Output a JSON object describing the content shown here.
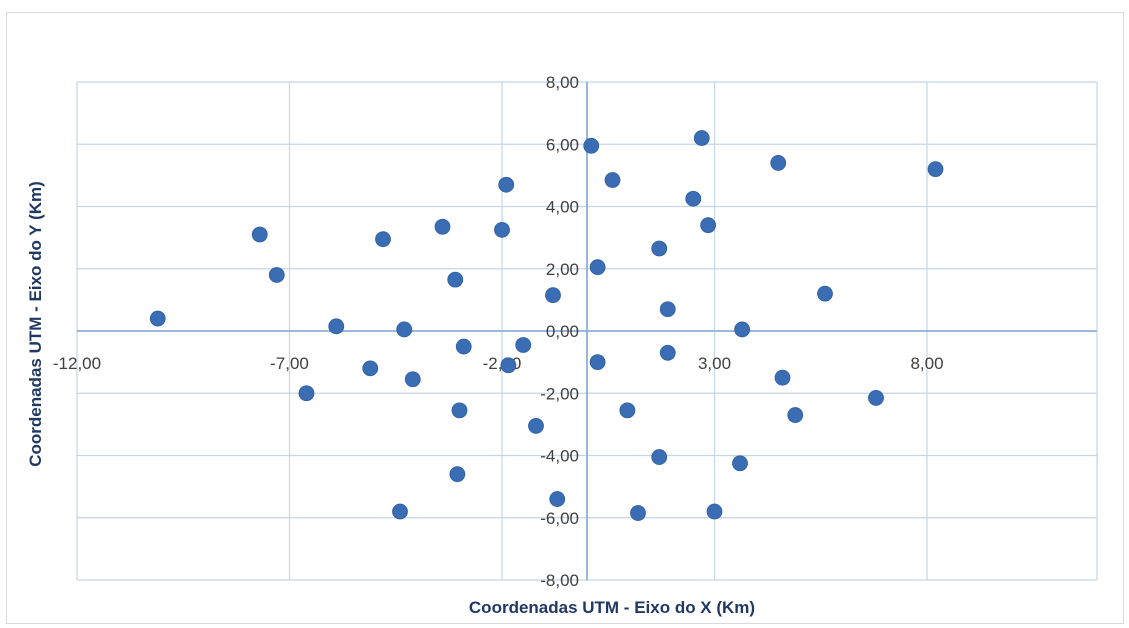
{
  "chart_data": {
    "type": "scatter",
    "xlabel": "Coordenadas UTM - Eixo do X (Km)",
    "ylabel": "Coordenadas UTM - Eixo do Y (Km)",
    "xlim": [
      -12,
      12
    ],
    "ylim": [
      -8,
      8
    ],
    "x_ticks": [
      {
        "value": -12,
        "label": "-12,00"
      },
      {
        "value": -7,
        "label": "-7,00"
      },
      {
        "value": -2,
        "label": "-2,00"
      },
      {
        "value": 3,
        "label": "3,00"
      },
      {
        "value": 8,
        "label": "8,00"
      }
    ],
    "y_ticks": [
      {
        "value": 8,
        "label": "8,00"
      },
      {
        "value": 6,
        "label": "6,00"
      },
      {
        "value": 4,
        "label": "4,00"
      },
      {
        "value": 2,
        "label": "2,00"
      },
      {
        "value": 0,
        "label": "0,00"
      },
      {
        "value": -2,
        "label": "-2,00"
      },
      {
        "value": -4,
        "label": "-4,00"
      },
      {
        "value": -6,
        "label": "-6,00"
      },
      {
        "value": -8,
        "label": "-8,00"
      }
    ],
    "grid": true,
    "marker_color": "#3a6db4",
    "points": [
      {
        "x": -10.1,
        "y": 0.4
      },
      {
        "x": -7.7,
        "y": 3.1
      },
      {
        "x": -7.3,
        "y": 1.8
      },
      {
        "x": -6.6,
        "y": -2.0
      },
      {
        "x": -5.9,
        "y": 0.15
      },
      {
        "x": -5.1,
        "y": -1.2
      },
      {
        "x": -4.8,
        "y": 2.95
      },
      {
        "x": -4.4,
        "y": -5.8
      },
      {
        "x": -4.3,
        "y": 0.05
      },
      {
        "x": -4.1,
        "y": -1.55
      },
      {
        "x": -3.4,
        "y": 3.35
      },
      {
        "x": -3.1,
        "y": 1.65
      },
      {
        "x": -3.05,
        "y": -4.6
      },
      {
        "x": -3.0,
        "y": -2.55
      },
      {
        "x": -2.9,
        "y": -0.5
      },
      {
        "x": -2.0,
        "y": 3.25
      },
      {
        "x": -1.9,
        "y": 4.7
      },
      {
        "x": -1.85,
        "y": -1.1
      },
      {
        "x": -1.5,
        "y": -0.45
      },
      {
        "x": -1.2,
        "y": -3.05
      },
      {
        "x": -0.8,
        "y": 1.15
      },
      {
        "x": -0.7,
        "y": -5.4
      },
      {
        "x": 0.1,
        "y": 5.95
      },
      {
        "x": 0.25,
        "y": 2.05
      },
      {
        "x": 0.25,
        "y": -1.0
      },
      {
        "x": 0.6,
        "y": 4.85
      },
      {
        "x": 0.95,
        "y": -2.55
      },
      {
        "x": 1.2,
        "y": -5.85
      },
      {
        "x": 1.7,
        "y": 2.65
      },
      {
        "x": 1.7,
        "y": -4.05
      },
      {
        "x": 1.9,
        "y": 0.7
      },
      {
        "x": 1.9,
        "y": -0.7
      },
      {
        "x": 2.5,
        "y": 4.25
      },
      {
        "x": 2.7,
        "y": 6.2
      },
      {
        "x": 2.85,
        "y": 3.4
      },
      {
        "x": 3.0,
        "y": -5.8
      },
      {
        "x": 3.6,
        "y": -4.25
      },
      {
        "x": 3.65,
        "y": 0.05
      },
      {
        "x": 4.5,
        "y": 5.4
      },
      {
        "x": 4.6,
        "y": -1.5
      },
      {
        "x": 4.9,
        "y": -2.7
      },
      {
        "x": 5.6,
        "y": 1.2
      },
      {
        "x": 6.8,
        "y": -2.15
      },
      {
        "x": 8.2,
        "y": 5.2
      }
    ]
  }
}
